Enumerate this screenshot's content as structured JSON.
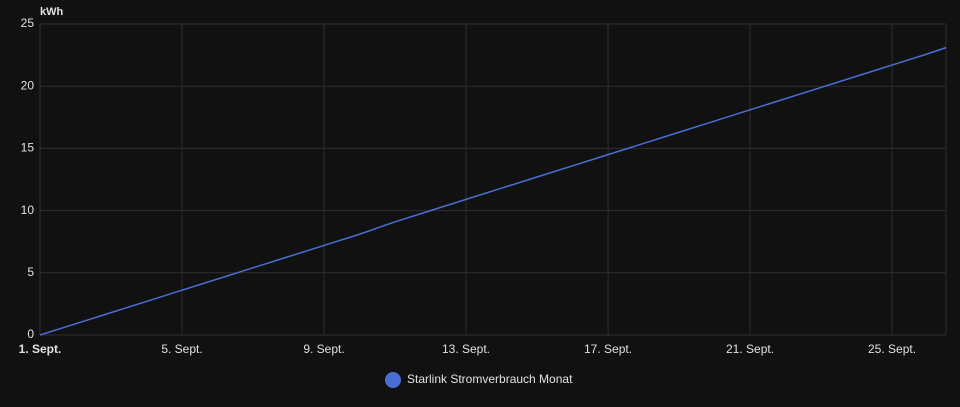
{
  "chart_data": {
    "type": "line",
    "y_label": "kWh",
    "x": [
      1,
      2,
      3,
      4,
      5,
      6,
      7,
      8,
      9,
      10,
      11,
      12,
      13,
      14,
      15,
      16,
      17,
      18,
      19,
      20,
      21,
      22,
      23,
      24,
      25,
      26,
      26.52
    ],
    "series": [
      {
        "name": "Starlink Stromverbrauch Monat",
        "color": "#4a6fd4",
        "values": [
          0,
          0.9,
          1.8,
          2.7,
          3.6,
          4.5,
          5.4,
          6.3,
          7.2,
          8.1,
          9.1,
          10.0,
          10.9,
          11.8,
          12.7,
          13.6,
          14.5,
          15.4,
          16.3,
          17.2,
          18.1,
          19.0,
          19.9,
          20.8,
          21.7,
          22.6,
          23.1
        ]
      }
    ],
    "xlim": [
      1,
      26.52
    ],
    "xticks": [
      {
        "value": 1,
        "label": "1. Sept."
      },
      {
        "value": 5,
        "label": "5. Sept."
      },
      {
        "value": 9,
        "label": "9. Sept."
      },
      {
        "value": 13,
        "label": "13. Sept."
      },
      {
        "value": 17,
        "label": "17. Sept."
      },
      {
        "value": 21,
        "label": "21. Sept."
      },
      {
        "value": 25,
        "label": "25. Sept."
      }
    ],
    "ylim": [
      0,
      25
    ],
    "yticks": [
      0,
      5,
      10,
      15,
      20,
      25
    ],
    "grid": true,
    "legend": "bottom"
  }
}
